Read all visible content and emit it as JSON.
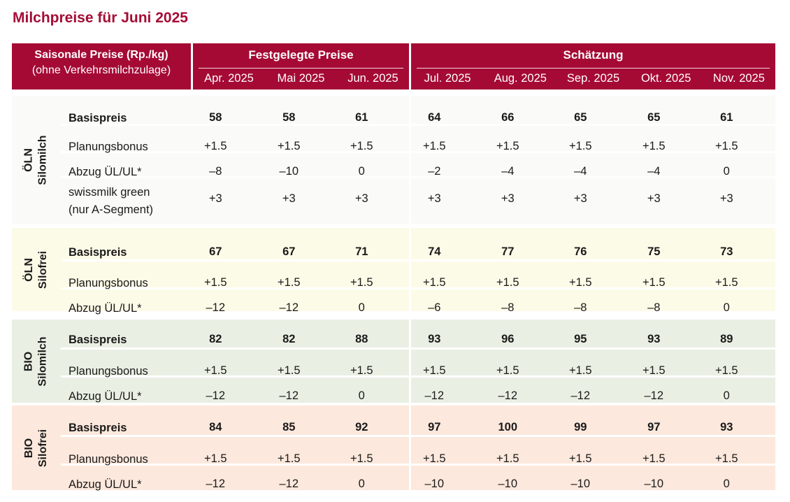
{
  "title": "Milchpreise für Juni 2025",
  "header": {
    "left_line1": "Saisonale Preise (Rp./kg)",
    "left_line2": "(ohne Verkehrsmilchzulage)",
    "fixed_title": "Festgelegte Preise",
    "estimate_title": "Schätzung",
    "fixed_months": [
      "Apr. 2025",
      "Mai 2025",
      "Jun. 2025"
    ],
    "estimate_months": [
      "Jul. 2025",
      "Aug. 2025",
      "Sep. 2025",
      "Okt. 2025",
      "Nov. 2025"
    ]
  },
  "sections": [
    {
      "label1": "ÖLN",
      "label2": "Silomilch",
      "bg": "#fafaf8",
      "rows": [
        {
          "name": "Basispreis",
          "values": [
            "58",
            "58",
            "61",
            "64",
            "66",
            "65",
            "65",
            "61"
          ]
        },
        {
          "name": "Planungsbonus",
          "values": [
            "+1.5",
            "+1.5",
            "+1.5",
            "+1.5",
            "+1.5",
            "+1.5",
            "+1.5",
            "+1.5"
          ]
        },
        {
          "name": "Abzug ÜL/UL*",
          "values": [
            "–8",
            "–10",
            "0",
            "–2",
            "–4",
            "–4",
            "–4",
            "0"
          ]
        },
        {
          "name": "swissmilk green",
          "name2": "(nur A-Segment)",
          "values": [
            "+3",
            "+3",
            "+3",
            "+3",
            "+3",
            "+3",
            "+3",
            "+3"
          ]
        }
      ]
    },
    {
      "label1": "ÖLN",
      "label2": "Silofrei",
      "bg": "#fcfbe8",
      "rows": [
        {
          "name": "Basispreis",
          "values": [
            "67",
            "67",
            "71",
            "74",
            "77",
            "76",
            "75",
            "73"
          ]
        },
        {
          "name": "Planungsbonus",
          "values": [
            "+1.5",
            "+1.5",
            "+1.5",
            "+1.5",
            "+1.5",
            "+1.5",
            "+1.5",
            "+1.5"
          ]
        },
        {
          "name": "Abzug ÜL/UL*",
          "values": [
            "–12",
            "–12",
            "0",
            "–6",
            "–8",
            "–8",
            "–8",
            "0"
          ]
        }
      ]
    },
    {
      "label1": "BIO",
      "label2": "Silomilch",
      "bg": "#e9f0e3",
      "rows": [
        {
          "name": "Basispreis",
          "values": [
            "82",
            "82",
            "88",
            "93",
            "96",
            "95",
            "93",
            "89"
          ]
        },
        {
          "name": "Planungsbonus",
          "values": [
            "+1.5",
            "+1.5",
            "+1.5",
            "+1.5",
            "+1.5",
            "+1.5",
            "+1.5",
            "+1.5"
          ]
        },
        {
          "name": "Abzug ÜL/UL*",
          "values": [
            "–12",
            "–12",
            "0",
            "–12",
            "–12",
            "–12",
            "–12",
            "0"
          ]
        }
      ]
    },
    {
      "label1": "BIO",
      "label2": "Silofrei",
      "bg": "#fce8dc",
      "rows": [
        {
          "name": "Basispreis",
          "values": [
            "84",
            "85",
            "92",
            "97",
            "100",
            "99",
            "97",
            "93"
          ]
        },
        {
          "name": "Planungsbonus",
          "values": [
            "+1.5",
            "+1.5",
            "+1.5",
            "+1.5",
            "+1.5",
            "+1.5",
            "+1.5",
            "+1.5"
          ]
        },
        {
          "name": "Abzug ÜL/UL*",
          "values": [
            "–12",
            "–12",
            "0",
            "–10",
            "–10",
            "–10",
            "–10",
            "0"
          ]
        }
      ]
    }
  ]
}
